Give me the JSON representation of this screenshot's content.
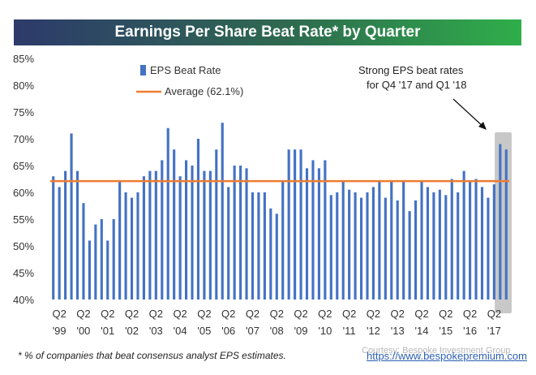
{
  "title": "Earnings Per Share Beat Rate* by Quarter",
  "footnote": "* % of companies that beat consensus analyst EPS estimates.",
  "source": {
    "courtesy": "Courtesy: Bespoke Investment Group",
    "url": "https://www.bespokepremium.com"
  },
  "colors": {
    "bar": "#4472c4",
    "average": "#ed7d31",
    "highlight": "#c8c8c8"
  },
  "chart_data": {
    "type": "bar",
    "title": "Earnings Per Share Beat Rate* by Quarter",
    "ylim": [
      40,
      85
    ],
    "yticks": [
      "40%",
      "45%",
      "50%",
      "55%",
      "60%",
      "65%",
      "70%",
      "75%",
      "80%",
      "85%"
    ],
    "ytick_values": [
      40,
      45,
      50,
      55,
      60,
      65,
      70,
      75,
      80,
      85
    ],
    "legend": {
      "series_label": "EPS Beat Rate",
      "average_label": "Average (62.1%)",
      "position": "top-left"
    },
    "average": 62.1,
    "annotation": {
      "line1": "Strong EPS beat rates",
      "line2": "for Q4 '17 and Q1 '18",
      "highlighted_quarters": [
        "Q4 '17",
        "Q1 '18"
      ]
    },
    "xtick_labels": [
      {
        "top": "Q2",
        "bottom": "'99",
        "index": 1
      },
      {
        "top": "Q2",
        "bottom": "'00",
        "index": 5
      },
      {
        "top": "Q2",
        "bottom": "'01",
        "index": 9
      },
      {
        "top": "Q2",
        "bottom": "'02",
        "index": 13
      },
      {
        "top": "Q2",
        "bottom": "'03",
        "index": 17
      },
      {
        "top": "Q2",
        "bottom": "'04",
        "index": 21
      },
      {
        "top": "Q2",
        "bottom": "'05",
        "index": 25
      },
      {
        "top": "Q2",
        "bottom": "'06",
        "index": 29
      },
      {
        "top": "Q2",
        "bottom": "'07",
        "index": 33
      },
      {
        "top": "Q2",
        "bottom": "'08",
        "index": 37
      },
      {
        "top": "Q2",
        "bottom": "'09",
        "index": 41
      },
      {
        "top": "Q2",
        "bottom": "'10",
        "index": 45
      },
      {
        "top": "Q2",
        "bottom": "'11",
        "index": 49
      },
      {
        "top": "Q2",
        "bottom": "'12",
        "index": 53
      },
      {
        "top": "Q2",
        "bottom": "'13",
        "index": 57
      },
      {
        "top": "Q2",
        "bottom": "'14",
        "index": 61
      },
      {
        "top": "Q2",
        "bottom": "'15",
        "index": 65
      },
      {
        "top": "Q2",
        "bottom": "'16",
        "index": 69
      },
      {
        "top": "Q2",
        "bottom": "'17",
        "index": 73
      }
    ],
    "values": [
      63,
      61,
      64,
      71,
      64,
      58,
      51,
      54,
      55,
      51,
      55,
      62,
      60,
      59,
      60,
      63,
      64,
      64,
      66,
      72,
      68,
      63,
      66,
      65,
      70,
      64,
      64,
      68,
      73,
      61,
      65,
      65,
      64.5,
      60,
      60,
      60,
      57,
      56,
      62,
      68,
      68,
      68,
      64.5,
      66,
      64.5,
      66,
      59.5,
      60,
      62,
      60.5,
      60,
      59,
      60,
      61,
      62,
      59,
      62,
      58.5,
      62,
      56.5,
      58.5,
      62,
      61,
      60,
      60.5,
      59.5,
      62.5,
      60,
      64,
      62,
      62.5,
      61,
      59,
      61.5,
      69,
      68
    ]
  }
}
